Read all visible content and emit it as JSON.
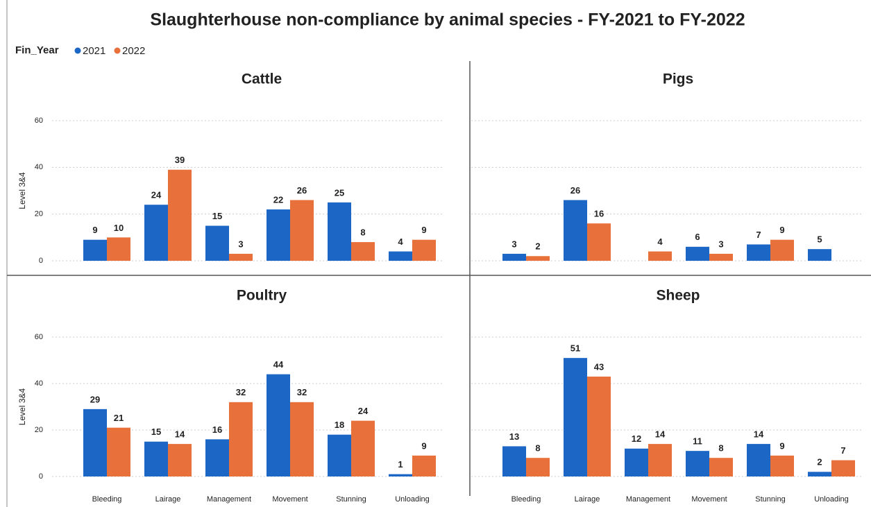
{
  "title": "Slaughterhouse non-compliance by animal species - FY-2021 to FY-2022",
  "legend_title": "Fin_Year",
  "chart_data": [
    {
      "type": "bar",
      "title": "Cattle",
      "y_label": "Level 3&4",
      "y_tick_labels": true,
      "series": [
        {
          "name": "2021",
          "color": "#1c66c6",
          "values": [
            9,
            24,
            15,
            22,
            25,
            4
          ]
        },
        {
          "name": "2022",
          "color": "#e8703a",
          "values": [
            10,
            39,
            3,
            26,
            8,
            9
          ]
        }
      ],
      "ylim": [
        0,
        60
      ],
      "yticks": [
        0,
        20,
        40,
        60
      ],
      "grid": true
    },
    {
      "type": "bar",
      "title": "Pigs",
      "y_tick_labels": false,
      "series": [
        {
          "name": "2021",
          "color": "#1c66c6",
          "values": [
            3,
            26,
            null,
            6,
            7,
            5
          ]
        },
        {
          "name": "2022",
          "color": "#e8703a",
          "values": [
            2,
            16,
            4,
            3,
            9,
            null
          ]
        }
      ],
      "ylim": [
        0,
        60
      ],
      "yticks": [
        0,
        20,
        40,
        60
      ],
      "grid": true
    },
    {
      "type": "bar",
      "title": "Poultry",
      "y_label": "Level 3&4",
      "y_tick_labels": true,
      "categories": [
        "Bleeding",
        "Lairage",
        "Management",
        "Movement",
        "Stunning",
        "Unloading"
      ],
      "series": [
        {
          "name": "2021",
          "color": "#1c66c6",
          "values": [
            29,
            15,
            16,
            44,
            18,
            1
          ]
        },
        {
          "name": "2022",
          "color": "#e8703a",
          "values": [
            21,
            14,
            32,
            32,
            24,
            9
          ]
        }
      ],
      "ylim": [
        0,
        60
      ],
      "yticks": [
        0,
        20,
        40,
        60
      ],
      "grid": true
    },
    {
      "type": "bar",
      "title": "Sheep",
      "y_tick_labels": false,
      "categories": [
        "Bleeding",
        "Lairage",
        "Management",
        "Movement",
        "Stunning",
        "Unloading"
      ],
      "series": [
        {
          "name": "2021",
          "color": "#1c66c6",
          "values": [
            13,
            51,
            12,
            11,
            14,
            2
          ]
        },
        {
          "name": "2022",
          "color": "#e8703a",
          "values": [
            8,
            43,
            14,
            8,
            9,
            7
          ]
        }
      ],
      "ylim": [
        0,
        60
      ],
      "yticks": [
        0,
        20,
        40,
        60
      ],
      "grid": true
    }
  ]
}
